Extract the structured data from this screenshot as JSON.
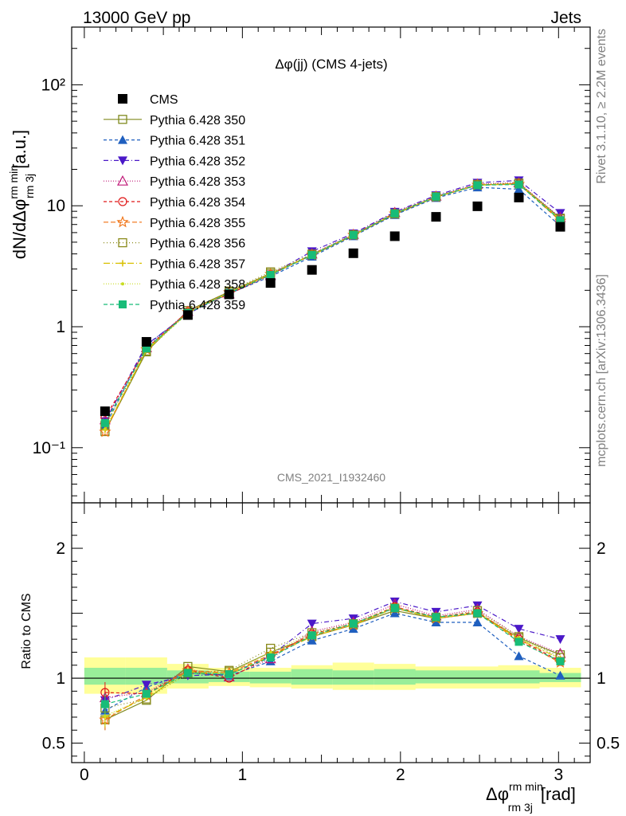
{
  "header": {
    "left": "13000 GeV pp",
    "right": "Jets",
    "side_rivet": "Rivet 3.1.10, ≥ 2.2M events",
    "side_mcplots": "mcplots.cern.ch [arXiv:1306.3436]",
    "watermark": "CMS_2021_I1932460",
    "panel_title": "Δφ(jj) (CMS 4-jets)"
  },
  "chart_data": [
    {
      "type": "scatter",
      "panel": "main",
      "ylabel": "dN/dΔφ rm min rm 3j [a.u.]",
      "yscale": "log",
      "ylim": [
        0.035,
        300
      ],
      "xlim": [
        -0.08,
        3.2
      ],
      "yticks": [
        {
          "v": 0.1,
          "label": "10⁻¹"
        },
        {
          "v": 1,
          "label": "1"
        },
        {
          "v": 10,
          "label": "10"
        },
        {
          "v": 100,
          "label": "10²"
        }
      ],
      "x": [
        0.131,
        0.393,
        0.655,
        0.916,
        1.178,
        1.44,
        1.702,
        1.964,
        2.225,
        2.487,
        2.749,
        3.011
      ],
      "reference": {
        "name": "CMS",
        "color": "#000000",
        "values": [
          0.2,
          0.75,
          1.25,
          1.85,
          2.3,
          2.95,
          4.05,
          5.6,
          8.1,
          9.9,
          11.7,
          6.7
        ]
      },
      "legend_position": "top-left"
    },
    {
      "type": "scatter",
      "panel": "ratio",
      "ylabel": "Ratio to CMS",
      "xlabel": "Δφ rm min rm 3j [rad]",
      "ylim": [
        0.35,
        2.35
      ],
      "xlim": [
        -0.08,
        3.2
      ],
      "xticks": [
        0,
        1,
        2,
        3
      ],
      "yticks": [
        0.5,
        1,
        2
      ],
      "band_inner": [
        [
          0.95,
          1.08
        ],
        [
          0.95,
          1.08
        ],
        [
          0.96,
          1.06
        ],
        [
          0.97,
          1.05
        ],
        [
          0.96,
          1.05
        ],
        [
          0.95,
          1.07
        ],
        [
          0.95,
          1.06
        ],
        [
          0.95,
          1.07
        ],
        [
          0.96,
          1.06
        ],
        [
          0.96,
          1.06
        ],
        [
          0.96,
          1.06
        ],
        [
          0.97,
          1.04
        ]
      ],
      "band_outer": [
        [
          0.88,
          1.16
        ],
        [
          0.88,
          1.16
        ],
        [
          0.92,
          1.11
        ],
        [
          0.94,
          1.08
        ],
        [
          0.93,
          1.08
        ],
        [
          0.92,
          1.1
        ],
        [
          0.91,
          1.12
        ],
        [
          0.91,
          1.11
        ],
        [
          0.92,
          1.09
        ],
        [
          0.92,
          1.09
        ],
        [
          0.92,
          1.1
        ],
        [
          0.93,
          1.08
        ]
      ]
    }
  ],
  "series": [
    {
      "name": "Pythia 6.428 350",
      "color": "#808a1e",
      "marker": "square-open",
      "dash": "",
      "mc": [
        0.136,
        0.62,
        1.36,
        1.94,
        2.76,
        3.9,
        5.7,
        8.5,
        11.8,
        14.8,
        15.3,
        7.9
      ],
      "ratio": [
        0.68,
        0.83,
        1.09,
        1.05,
        1.2,
        1.32,
        1.41,
        1.52,
        1.46,
        1.5,
        1.31,
        1.18
      ]
    },
    {
      "name": "Pythia 6.428 351",
      "color": "#1f5fbf",
      "marker": "triangle-up",
      "dash": "4,3",
      "mc": [
        0.15,
        0.7,
        1.3,
        1.88,
        2.6,
        3.8,
        5.6,
        8.4,
        11.6,
        14.2,
        13.7,
        6.8
      ],
      "ratio": [
        0.75,
        0.93,
        1.04,
        1.02,
        1.13,
        1.29,
        1.38,
        1.5,
        1.43,
        1.43,
        1.17,
        1.02
      ]
    },
    {
      "name": "Pythia 6.428 352",
      "color": "#4a18c8",
      "marker": "triangle-down",
      "dash": "6,3,1,3",
      "mc": [
        0.165,
        0.71,
        1.28,
        1.9,
        2.7,
        4.2,
        5.9,
        8.9,
        12.2,
        15.5,
        16.2,
        8.7
      ],
      "ratio": [
        0.83,
        0.95,
        1.02,
        1.03,
        1.17,
        1.42,
        1.46,
        1.59,
        1.51,
        1.56,
        1.38,
        1.3
      ]
    },
    {
      "name": "Pythia 6.428 353",
      "color": "#c01878",
      "marker": "triangle-open",
      "dash": "1,2",
      "mc": [
        0.17,
        0.67,
        1.34,
        1.87,
        2.65,
        4.0,
        5.8,
        8.8,
        12.0,
        15.1,
        15.5,
        8.0
      ],
      "ratio": [
        0.85,
        0.89,
        1.07,
        1.01,
        1.15,
        1.36,
        1.43,
        1.57,
        1.48,
        1.53,
        1.32,
        1.19
      ]
    },
    {
      "name": "Pythia 6.428 354",
      "color": "#e01818",
      "marker": "circle-open",
      "dash": "4,3",
      "mc": [
        0.178,
        0.66,
        1.33,
        1.86,
        2.7,
        3.95,
        5.75,
        8.7,
        11.9,
        14.9,
        15.2,
        7.6
      ],
      "ratio": [
        0.89,
        0.88,
        1.06,
        1.0,
        1.17,
        1.34,
        1.42,
        1.55,
        1.47,
        1.51,
        1.3,
        1.13
      ]
    },
    {
      "name": "Pythia 6.428 355",
      "color": "#f07010",
      "marker": "star-open",
      "dash": "6,3",
      "mc": [
        0.135,
        0.65,
        1.32,
        1.92,
        2.72,
        3.92,
        5.72,
        8.6,
        11.85,
        14.85,
        15.1,
        7.5
      ],
      "ratio": [
        0.68,
        0.87,
        1.06,
        1.04,
        1.18,
        1.33,
        1.41,
        1.54,
        1.46,
        1.5,
        1.29,
        1.12
      ]
    },
    {
      "name": "Pythia 6.428 356",
      "color": "#8a8a1a",
      "marker": "square-open",
      "dash": "1,3",
      "mc": [
        0.154,
        0.63,
        1.3,
        1.97,
        2.84,
        3.98,
        5.76,
        8.6,
        11.9,
        15.0,
        15.4,
        7.8
      ],
      "ratio": [
        0.77,
        0.84,
        1.04,
        1.06,
        1.23,
        1.35,
        1.42,
        1.54,
        1.47,
        1.52,
        1.32,
        1.16
      ]
    },
    {
      "name": "Pythia 6.428 357",
      "color": "#d8c000",
      "marker": "cross",
      "dash": "8,3,1,3",
      "mc": [
        0.14,
        0.64,
        1.31,
        1.9,
        2.7,
        3.9,
        5.7,
        8.6,
        11.8,
        14.8,
        15.2,
        7.7
      ],
      "ratio": [
        0.7,
        0.85,
        1.05,
        1.03,
        1.17,
        1.32,
        1.41,
        1.54,
        1.46,
        1.5,
        1.3,
        1.15
      ]
    },
    {
      "name": "Pythia 6.428 358",
      "color": "#c8dc20",
      "marker": "dot",
      "dash": "1,2",
      "mc": [
        0.142,
        0.64,
        1.29,
        1.93,
        2.75,
        3.95,
        5.75,
        8.7,
        11.85,
        14.9,
        15.3,
        7.7
      ],
      "ratio": [
        0.71,
        0.85,
        1.03,
        1.04,
        1.2,
        1.34,
        1.42,
        1.55,
        1.46,
        1.51,
        1.31,
        1.15
      ]
    },
    {
      "name": "Pythia 6.428 359",
      "color": "#18bc78",
      "marker": "square",
      "dash": "5,3",
      "mc": [
        0.16,
        0.66,
        1.3,
        1.9,
        2.68,
        3.92,
        5.74,
        8.65,
        11.9,
        14.8,
        15.0,
        7.6
      ],
      "ratio": [
        0.8,
        0.88,
        1.04,
        1.03,
        1.16,
        1.33,
        1.42,
        1.54,
        1.47,
        1.5,
        1.28,
        1.13
      ]
    }
  ],
  "legend": {
    "reference_label": "CMS"
  }
}
